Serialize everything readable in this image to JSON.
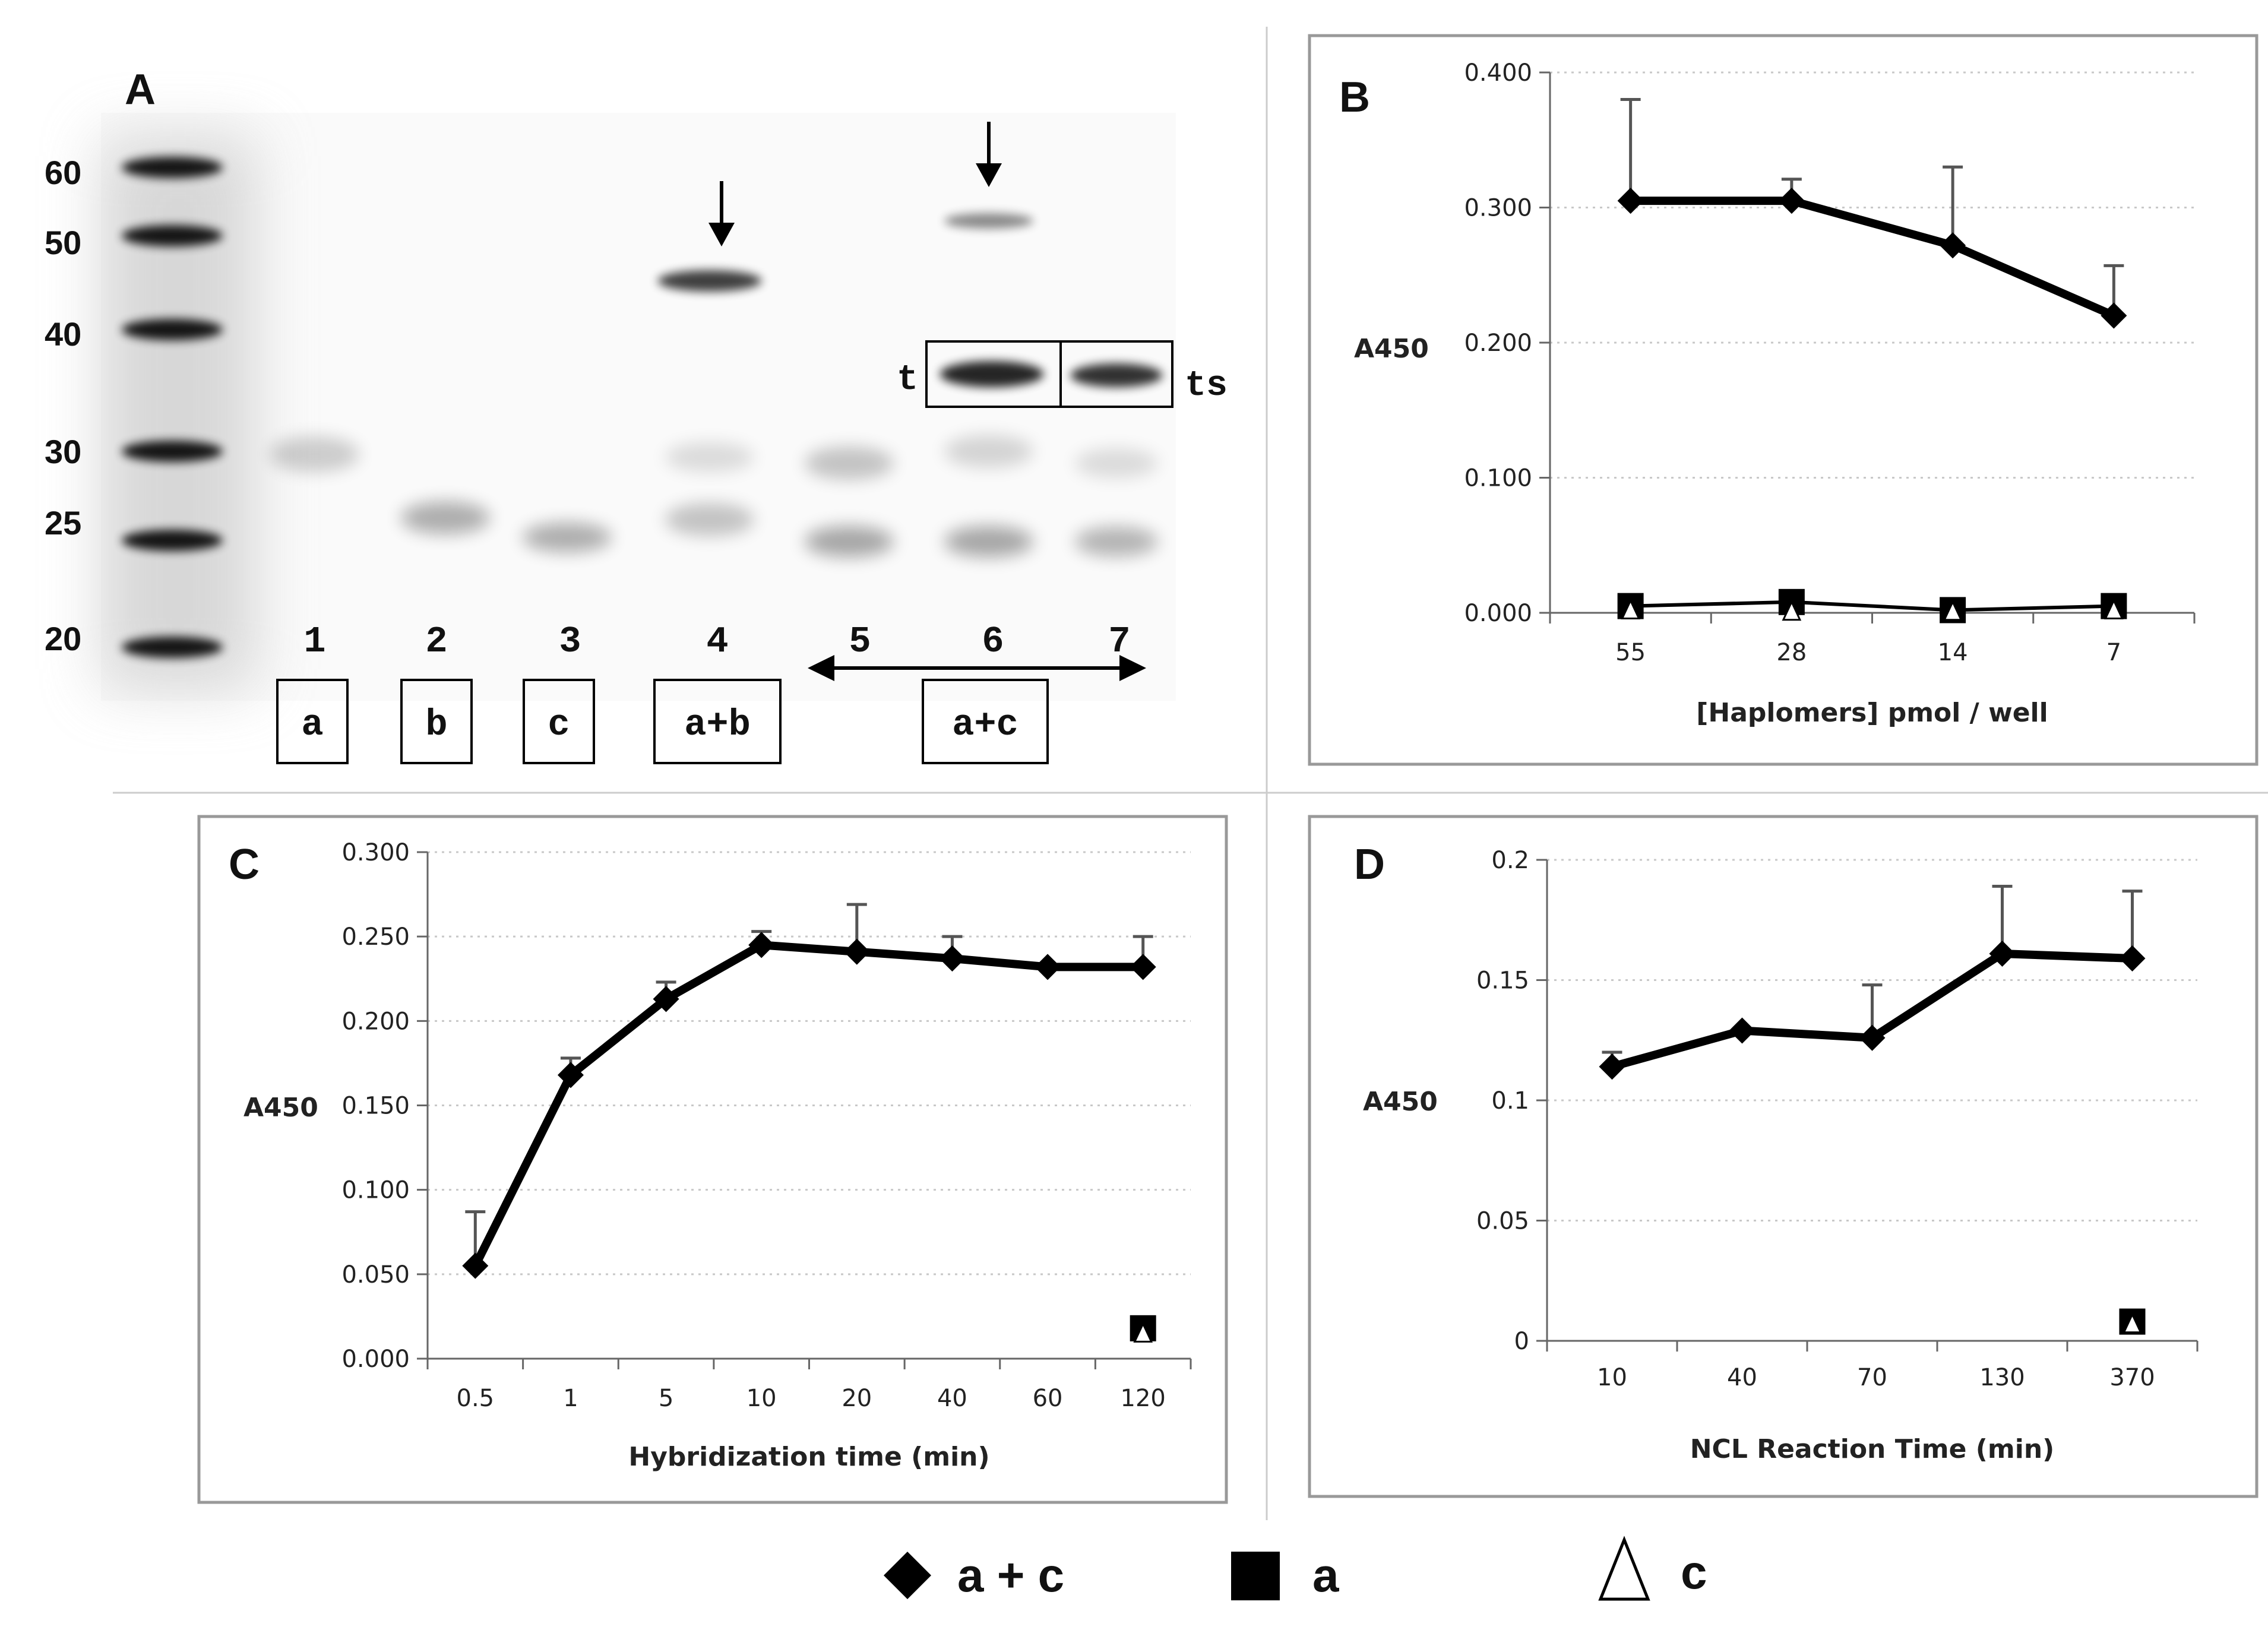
{
  "panel_a": {
    "label": "A",
    "mw_markers": [
      "60",
      "50",
      "40",
      "30",
      "25",
      "20"
    ],
    "lanes": [
      "1",
      "2",
      "3",
      "4",
      "5",
      "6",
      "7"
    ],
    "samples": [
      "a",
      "b",
      "c",
      "a+b",
      "a+c"
    ],
    "band_labels": {
      "left": "t",
      "right": "ts"
    }
  },
  "legend": {
    "items": [
      {
        "marker": "diamond-filled",
        "label": "a + c"
      },
      {
        "marker": "square-filled",
        "label": "a"
      },
      {
        "marker": "triangle-open",
        "label": "c"
      }
    ]
  },
  "chart_data": [
    {
      "panel": "B",
      "type": "line",
      "categories": [
        "55",
        "28",
        "14",
        "7"
      ],
      "xlabel": "[Haplomers] pmol / well",
      "ylabel": "A450",
      "ylim": [
        0,
        0.4
      ],
      "yticks": [
        "0.000",
        "0.100",
        "0.200",
        "0.300",
        "0.400"
      ],
      "grid": true,
      "series": [
        {
          "name": "a + c",
          "values": [
            0.305,
            0.305,
            0.272,
            0.22
          ],
          "err": [
            0.075,
            0.016,
            0.058,
            0.037
          ]
        },
        {
          "name": "a",
          "values": [
            0.005,
            0.008,
            0.002,
            0.005
          ]
        },
        {
          "name": "c",
          "values": [
            0.002,
            0.001,
            0.001,
            0.002
          ]
        }
      ]
    },
    {
      "panel": "C",
      "type": "line",
      "categories": [
        "0.5",
        "1",
        "5",
        "10",
        "20",
        "40",
        "60",
        "120"
      ],
      "xlabel": "Hybridization time (min)",
      "ylabel": "A450",
      "ylim": [
        0,
        0.3
      ],
      "yticks": [
        "0.000",
        "0.050",
        "0.100",
        "0.150",
        "0.200",
        "0.250",
        "0.300"
      ],
      "grid": true,
      "series": [
        {
          "name": "a + c",
          "values": [
            0.055,
            0.168,
            0.213,
            0.245,
            0.241,
            0.237,
            0.232,
            0.232
          ],
          "err": [
            0.032,
            0.01,
            0.01,
            0.008,
            0.028,
            0.013,
            0.0,
            0.018
          ]
        },
        {
          "name": "a",
          "values": [
            null,
            null,
            null,
            null,
            null,
            null,
            null,
            0.018
          ]
        },
        {
          "name": "c",
          "values": [
            null,
            null,
            null,
            null,
            null,
            null,
            null,
            0.015
          ]
        }
      ]
    },
    {
      "panel": "D",
      "type": "line",
      "categories": [
        "10",
        "40",
        "70",
        "130",
        "370"
      ],
      "xlabel": "NCL Reaction Time (min)",
      "ylabel": "A450",
      "ylim": [
        0,
        0.2
      ],
      "yticks": [
        "0",
        "0.05",
        "0.1",
        "0.15",
        "0.2"
      ],
      "grid": true,
      "series": [
        {
          "name": "a + c",
          "values": [
            0.114,
            0.129,
            0.126,
            0.161,
            0.159
          ],
          "err": [
            0.006,
            0.0,
            0.022,
            0.028,
            0.028
          ]
        },
        {
          "name": "a",
          "values": [
            null,
            null,
            null,
            null,
            0.008
          ]
        },
        {
          "name": "c",
          "values": [
            null,
            null,
            null,
            null,
            0.007
          ]
        }
      ]
    }
  ]
}
